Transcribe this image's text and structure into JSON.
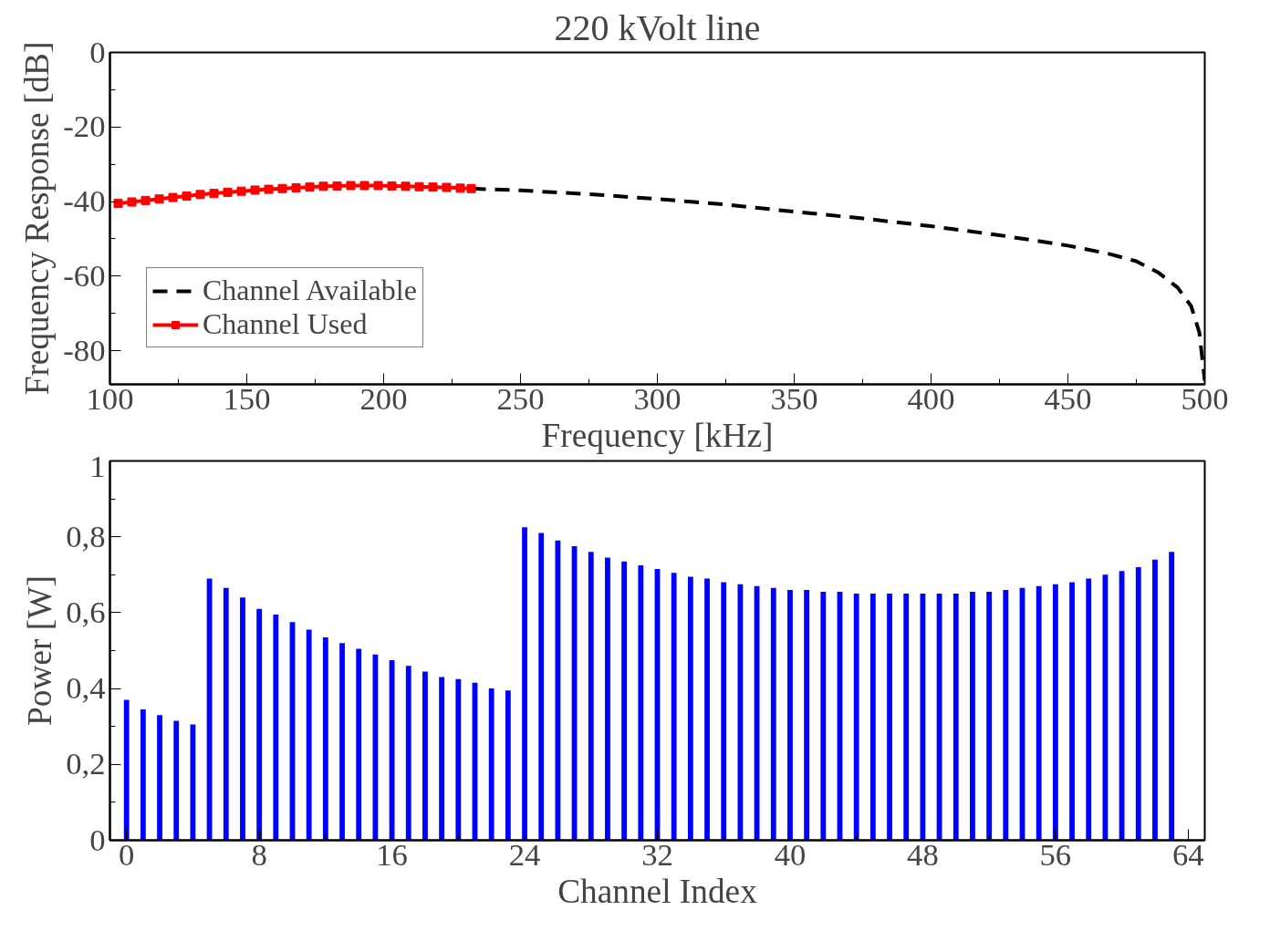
{
  "chart_data": [
    {
      "type": "line",
      "title": "220 kVolt line",
      "xlabel": "Frequency [kHz]",
      "ylabel": "Frequency Response [dB]",
      "xlim": [
        100,
        500
      ],
      "ylim": [
        -89,
        0
      ],
      "xticks": [
        100,
        150,
        200,
        250,
        300,
        350,
        400,
        450,
        500
      ],
      "yticks": [
        0,
        -20,
        -40,
        -60,
        -80
      ],
      "grid": false,
      "legend": "bottom left",
      "series": [
        {
          "name": "Channel Available",
          "color": "#000000",
          "line_style": "dashed",
          "marker": "none",
          "x": [
            232,
            250,
            275,
            300,
            325,
            350,
            375,
            400,
            425,
            450,
            465,
            475,
            483,
            490,
            495,
            498,
            500
          ],
          "values": [
            -36.5,
            -37,
            -38,
            -39.3,
            -40.8,
            -42.7,
            -44.5,
            -46.6,
            -49,
            -51.8,
            -54,
            -56,
            -59,
            -63,
            -68,
            -75,
            -88
          ]
        },
        {
          "name": "Channel Used",
          "color": "#ff0000",
          "line_style": "solid",
          "marker": "square",
          "x": [
            103,
            108,
            113,
            118,
            123,
            128,
            133,
            138,
            143,
            148,
            153,
            158,
            163,
            168,
            173,
            178,
            183,
            188,
            193,
            198,
            203,
            208,
            213,
            218,
            223,
            228,
            232
          ],
          "values": [
            -40.5,
            -40.1,
            -39.7,
            -39.3,
            -38.9,
            -38.5,
            -38.1,
            -37.8,
            -37.5,
            -37.2,
            -36.9,
            -36.7,
            -36.5,
            -36.3,
            -36.1,
            -35.9,
            -35.8,
            -35.7,
            -35.7,
            -35.7,
            -35.8,
            -35.9,
            -36,
            -36.1,
            -36.2,
            -36.4,
            -36.5
          ]
        }
      ]
    },
    {
      "type": "bar",
      "xlabel": "Channel Index",
      "ylabel": "Power [W]",
      "xlim": [
        -1,
        65
      ],
      "ylim": [
        0,
        1
      ],
      "xticks": [
        0,
        8,
        16,
        24,
        32,
        40,
        48,
        56,
        64
      ],
      "yticks": [
        0,
        {
          "value": 0.2,
          "label": "0,2"
        },
        {
          "value": 0.4,
          "label": "0,4"
        },
        {
          "value": 0.6,
          "label": "0,6"
        },
        {
          "value": 0.8,
          "label": "0,8"
        },
        1
      ],
      "grid": false,
      "x": [
        0,
        1,
        2,
        3,
        4,
        5,
        6,
        7,
        8,
        9,
        10,
        11,
        12,
        13,
        14,
        15,
        16,
        17,
        18,
        19,
        20,
        21,
        22,
        23,
        24,
        25,
        26,
        27,
        28,
        29,
        30,
        31,
        32,
        33,
        34,
        35,
        36,
        37,
        38,
        39,
        40,
        41,
        42,
        43,
        44,
        45,
        46,
        47,
        48,
        49,
        50,
        51,
        52,
        53,
        54,
        55,
        56,
        57,
        58,
        59,
        60,
        61,
        62,
        63
      ],
      "series": [
        {
          "color": "#0000ff",
          "values": [
            0.37,
            0.345,
            0.33,
            0.315,
            0.305,
            0.69,
            0.665,
            0.64,
            0.61,
            0.595,
            0.575,
            0.555,
            0.535,
            0.52,
            0.505,
            0.49,
            0.475,
            0.46,
            0.445,
            0.43,
            0.425,
            0.415,
            0.4,
            0.395,
            0.825,
            0.81,
            0.79,
            0.775,
            0.76,
            0.745,
            0.735,
            0.725,
            0.715,
            0.705,
            0.695,
            0.69,
            0.68,
            0.675,
            0.67,
            0.665,
            0.66,
            0.66,
            0.655,
            0.655,
            0.65,
            0.65,
            0.65,
            0.65,
            0.65,
            0.65,
            0.65,
            0.655,
            0.655,
            0.66,
            0.665,
            0.67,
            0.675,
            0.68,
            0.69,
            0.7,
            0.71,
            0.72,
            0.74,
            0.76
          ]
        }
      ]
    }
  ]
}
